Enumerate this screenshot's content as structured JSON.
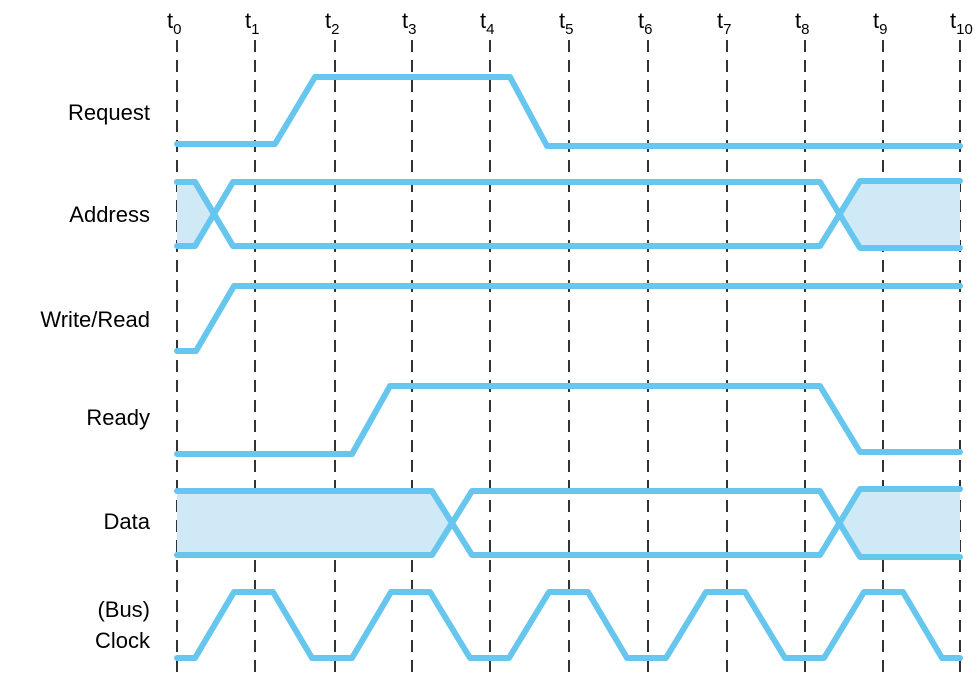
{
  "colors": {
    "waveform": "#67c6ee",
    "undefined_fill": "#cfe9f6",
    "guides": "#000000",
    "text": "#000000"
  },
  "time_markers": [
    {
      "base": "t",
      "sub": "0"
    },
    {
      "base": "t",
      "sub": "1"
    },
    {
      "base": "t",
      "sub": "2"
    },
    {
      "base": "t",
      "sub": "3"
    },
    {
      "base": "t",
      "sub": "4"
    },
    {
      "base": "t",
      "sub": "5"
    },
    {
      "base": "t",
      "sub": "6"
    },
    {
      "base": "t",
      "sub": "7"
    },
    {
      "base": "t",
      "sub": "8"
    },
    {
      "base": "t",
      "sub": "9"
    },
    {
      "base": "t",
      "sub": "10"
    }
  ],
  "signals": [
    {
      "key": "request",
      "label_lines": [
        "Request"
      ]
    },
    {
      "key": "address",
      "label_lines": [
        "Address"
      ]
    },
    {
      "key": "write_read",
      "label_lines": [
        "Write/Read"
      ]
    },
    {
      "key": "ready",
      "label_lines": [
        "Ready"
      ]
    },
    {
      "key": "data",
      "label_lines": [
        "Data"
      ]
    },
    {
      "key": "clock",
      "label_lines": [
        "(Bus)",
        "Clock"
      ]
    }
  ]
}
